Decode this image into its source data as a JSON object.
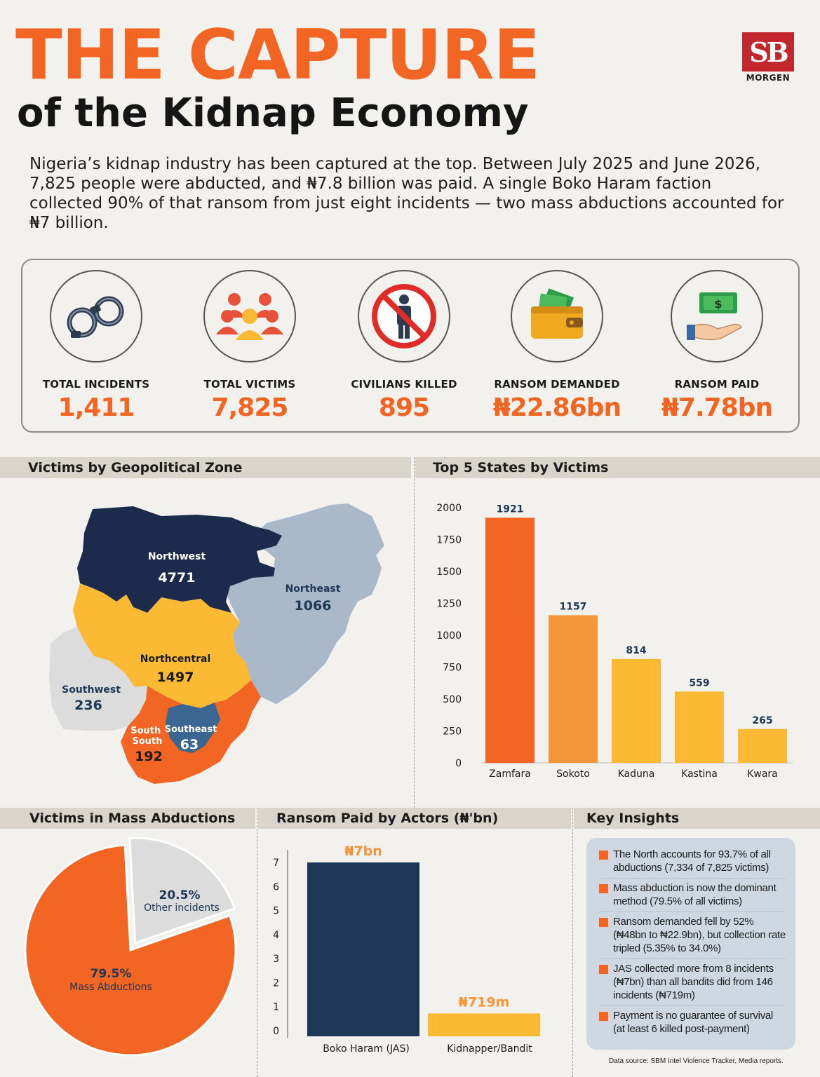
{
  "header": {
    "title_line1": "THE CAPTURE",
    "title_line2": "of the Kidnap Economy",
    "logo_mark": "SB",
    "logo_text": "MORGEN",
    "intro": "Nigeria’s kidnap industry has been captured at the top. Between July 2025 and June 2026, 7,825 people were abducted, and ₦7.8 billion was paid. A single Boko Haram faction collected 90% of that ransom from just eight incidents — two mass abductions accounted for ₦7 billion."
  },
  "stats": [
    {
      "label": "TOTAL INCIDENTS",
      "value": "1,411",
      "icon": "handcuffs-icon"
    },
    {
      "label": "TOTAL VICTIMS",
      "value": "7,825",
      "icon": "people-group-icon"
    },
    {
      "label": "CIVILIANS KILLED",
      "value": "895",
      "icon": "no-person-icon"
    },
    {
      "label": "RANSOM DEMANDED",
      "value": "₦22.86bn",
      "icon": "wallet-icon"
    },
    {
      "label": "RANSOM PAID",
      "value": "₦7.78bn",
      "icon": "hand-money-icon"
    }
  ],
  "sections": {
    "zones": "Victims by Geopolitical Zone",
    "states": "Top 5 States by Victims",
    "mass": "Victims in Mass Abductions",
    "actors": "Ransom Paid by Actors (₦'bn)",
    "insights": "Key Insights"
  },
  "colors": {
    "orange": "#f26522",
    "light_orange": "#f7953a",
    "yellow": "#fbb934",
    "navy": "#1c2b4b",
    "actor_navy": "#1e3754",
    "light_blue": "#a9b9c9",
    "grey": "#dcdcdc",
    "southeast_blue": "#3a6691"
  },
  "chart_data": [
    {
      "type": "map",
      "regions": [
        {
          "name": "Northwest",
          "value": 4771
        },
        {
          "name": "Northeast",
          "value": 1066
        },
        {
          "name": "Northcentral",
          "value": 1497
        },
        {
          "name": "Southwest",
          "value": 236
        },
        {
          "name": "South South",
          "value": 192
        },
        {
          "name": "Southeast",
          "value": 63
        }
      ]
    },
    {
      "type": "bar",
      "categories": [
        "Zamfara",
        "Sokoto",
        "Kaduna",
        "Kastina",
        "Kwara"
      ],
      "values": [
        1921,
        1157,
        814,
        559,
        265
      ],
      "ylim": [
        0,
        2000
      ],
      "yticks": [
        0,
        250,
        500,
        750,
        1000,
        1250,
        1500,
        1750,
        2000
      ]
    },
    {
      "type": "pie",
      "slices": [
        {
          "pct": "79.5%",
          "label": "Mass Abductions",
          "value": 79.5
        },
        {
          "pct": "20.5%",
          "label": "Other incidents",
          "value": 20.5
        }
      ]
    },
    {
      "type": "bar",
      "categories": [
        "Boko Haram (JAS)",
        "Kidnapper/Bandit"
      ],
      "values": [
        7,
        0.719
      ],
      "data_labels": [
        "₦7bn",
        "₦719m"
      ],
      "ylim": [
        0,
        7
      ],
      "yticks": [
        0,
        1,
        2,
        3,
        4,
        5,
        6,
        7
      ]
    }
  ],
  "insights": [
    "The North accounts for 93.7% of all abductions (7,334 of 7,825 victims)",
    "Mass abduction is now the dominant method (79.5% of all victims)",
    "Ransom demanded fell by 52% (₦48bn to ₦22.9bn), but collection rate tripled (5.35% to 34.0%)",
    "JAS collected more from 8 incidents (₦7bn) than all bandits did from 146 incidents (₦719m)",
    "Payment is no guarantee of survival (at least 6 killed post-payment)"
  ],
  "source": "Data source: SBM Intel Violence Tracker, Media reports."
}
